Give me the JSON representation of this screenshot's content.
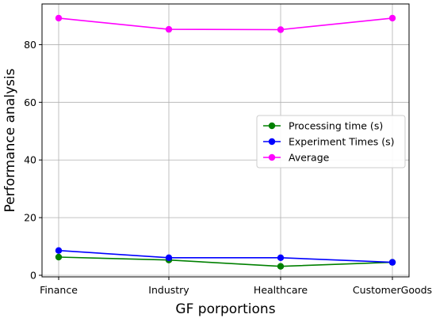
{
  "chart_data": {
    "type": "line",
    "categories": [
      "Finance",
      "Industry",
      "Healthcare",
      "CustomerGoods"
    ],
    "series": [
      {
        "name": "Processing time (s)",
        "color": "#008000",
        "values": [
          6.3,
          5.3,
          3.1,
          4.5
        ]
      },
      {
        "name": "Experiment Times (s)",
        "color": "#0000ff",
        "values": [
          8.6,
          6.1,
          6.1,
          4.5
        ]
      },
      {
        "name": "Average",
        "color": "#ff00ff",
        "values": [
          89.2,
          85.3,
          85.2,
          89.2
        ]
      }
    ],
    "xlabel": "GF porportions",
    "ylabel": "Performance analysis",
    "ylim": [
      0,
      90
    ],
    "yticks": [
      0,
      20,
      40,
      60,
      80
    ],
    "grid": true,
    "legend_position": "center-right"
  }
}
